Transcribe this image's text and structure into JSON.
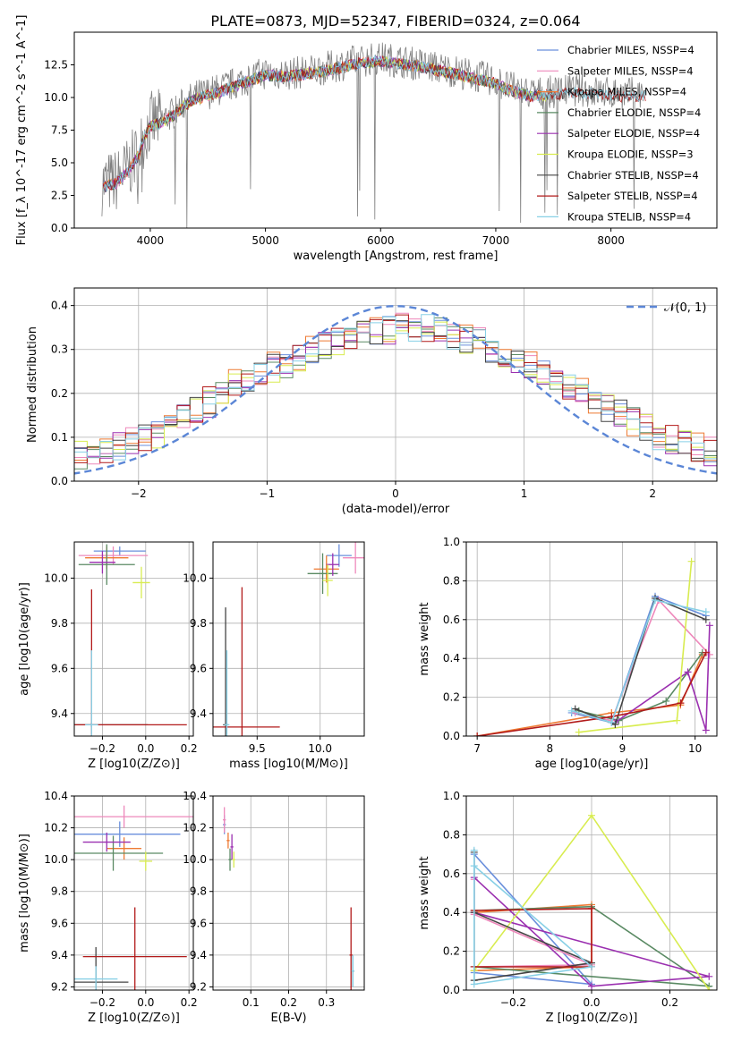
{
  "figure_title": "PLATE=0873, MJD=52347, FIBERID=0324, z=0.064",
  "colors": {
    "Chabrier MILES": "#6a8fdc",
    "Salpeter MILES": "#ee88bb",
    "Kroupa MILES": "#ee7a33",
    "Chabrier ELODIE": "#5a8a63",
    "Salpeter ELODIE": "#9b30b0",
    "Kroupa ELODIE": "#d8ec50",
    "Chabrier STELIB": "#444444",
    "Salpeter STELIB": "#b21a1a",
    "Kroupa STELIB": "#88d0e6",
    "data": "#808080"
  },
  "chart_data": [
    {
      "type": "line",
      "title": "PLATE=0873, MJD=52347, FIBERID=0324, z=0.064",
      "xlabel": "wavelength [Angstrom, rest frame]",
      "ylabel": "Flux [f_λ 10^-17 erg cm^-2 s^-1 A^-1]",
      "xlim": [
        3340,
        8920
      ],
      "ylim": [
        0,
        15
      ],
      "xticks": [
        "4000",
        "5000",
        "6000",
        "7000",
        "8000"
      ],
      "yticks": [
        "0.0",
        "2.5",
        "5.0",
        "7.5",
        "10.0",
        "12.5"
      ],
      "legend": [
        "Chabrier MILES, NSSP=4",
        "Salpeter MILES, NSSP=4",
        "Kroupa MILES, NSSP=4",
        "Chabrier ELODIE, NSSP=4",
        "Salpeter ELODIE, NSSP=4",
        "Kroupa ELODIE, NSSP=3",
        "Chabrier STELIB, NSSP=4",
        "Salpeter STELIB, NSSP=4",
        "Kroupa STELIB, NSSP=4"
      ],
      "legend_position": "right",
      "continuum": {
        "x": [
          3600,
          3700,
          3800,
          3900,
          3950,
          4000,
          4100,
          4200,
          4300,
          4400,
          4600,
          4800,
          5000,
          5200,
          5500,
          5800,
          6000,
          6300,
          6600,
          7000,
          7100,
          7300,
          7500,
          7700,
          7900,
          8100
        ],
        "y": [
          3.4,
          3.6,
          4.5,
          5.8,
          7.2,
          8.0,
          8.3,
          8.8,
          9.6,
          10.1,
          10.6,
          11.3,
          11.9,
          11.8,
          12.2,
          12.8,
          13.0,
          12.6,
          12.1,
          11.3,
          10.8,
          10.3,
          10.4,
          10.6,
          10.4,
          10.3
        ]
      },
      "data_range": [
        3580,
        8300
      ]
    },
    {
      "type": "histogram",
      "xlabel": "(data-model)/error",
      "ylabel": "Normed distribution",
      "xlim": [
        -2.5,
        2.5
      ],
      "ylim": [
        0,
        0.44
      ],
      "xticks": [
        "−2",
        "−1",
        "0",
        "1",
        "2"
      ],
      "yticks": [
        "0.0",
        "0.1",
        "0.2",
        "0.3",
        "0.4"
      ],
      "bin_width": 0.1,
      "reference_curve": {
        "name": "𝒩(0, 1)",
        "mean": 0,
        "sigma": 1
      },
      "envelope": [
        0.04,
        0.045,
        0.05,
        0.055,
        0.06,
        0.06,
        0.065,
        0.07,
        0.08,
        0.09,
        0.1,
        0.11,
        0.125,
        0.14,
        0.16,
        0.18,
        0.2,
        0.22,
        0.235,
        0.25,
        0.26,
        0.27,
        0.285,
        0.3,
        0.31,
        0.32,
        0.33,
        0.335,
        0.34,
        0.345,
        0.35,
        0.35,
        0.345,
        0.34,
        0.33,
        0.325,
        0.315,
        0.3,
        0.29,
        0.28,
        0.265,
        0.25,
        0.235,
        0.22,
        0.2,
        0.18,
        0.165,
        0.15,
        0.135,
        0.12,
        0.105,
        0.095,
        0.085,
        0.078,
        0.07,
        0.065,
        0.06,
        0.055,
        0.05,
        0.045
      ]
    },
    {
      "type": "scatter",
      "xlabel": "Z [log10(Z/Z⊙)]",
      "ylabel": "age  [log10(age/yr)]",
      "xlim": [
        -0.33,
        0.22
      ],
      "ylim": [
        9.3,
        10.16
      ],
      "xticks": [
        "−0.2",
        "0.0",
        "0.2"
      ],
      "yticks": [
        "9.4",
        "9.6",
        "9.8",
        "10.0"
      ]
    },
    {
      "type": "scatter",
      "xlabel": "mass [log10(M/M⊙)]",
      "xlim": [
        9.15,
        10.35
      ],
      "ylim": [
        9.3,
        10.16
      ],
      "xticks": [
        "9.5",
        "10.0"
      ],
      "yticks": [
        "9.4",
        "9.6",
        "9.8",
        "10.0"
      ]
    },
    {
      "type": "line",
      "xlabel": "age  [log10(age/yr)]",
      "ylabel": "mass weight",
      "xlim": [
        6.85,
        10.3
      ],
      "ylim": [
        0,
        1
      ],
      "xticks": [
        "7",
        "8",
        "9",
        "10"
      ],
      "yticks": [
        "0.0",
        "0.2",
        "0.4",
        "0.6",
        "0.8",
        "1.0"
      ]
    },
    {
      "type": "scatter",
      "xlabel": "Z [log10(Z/Z⊙)]",
      "ylabel": "mass [log10(M/M⊙)]",
      "xlim": [
        -0.33,
        0.22
      ],
      "ylim": [
        9.18,
        10.4
      ],
      "xticks": [
        "−0.2",
        "0.0",
        "0.2"
      ],
      "yticks": [
        "9.2",
        "9.4",
        "9.6",
        "9.8",
        "10.0",
        "10.2",
        "10.4"
      ]
    },
    {
      "type": "scatter",
      "xlabel": "E(B-V)",
      "xlim": [
        0.0,
        0.4
      ],
      "ylim": [
        9.18,
        10.4
      ],
      "xticks": [
        "0.1",
        "0.2",
        "0.3"
      ],
      "yticks": [
        "9.2",
        "9.4",
        "9.6",
        "9.8",
        "10.0",
        "10.2",
        "10.4"
      ]
    },
    {
      "type": "line",
      "xlabel": "Z [log10(Z/Z⊙)]",
      "ylabel": "mass weight",
      "xlim": [
        -0.32,
        0.32
      ],
      "ylim": [
        0,
        1
      ],
      "xticks": [
        "−0.2",
        "0.0",
        "0.2"
      ],
      "yticks": [
        "0.0",
        "0.2",
        "0.4",
        "0.6",
        "0.8",
        "1.0"
      ]
    }
  ]
}
